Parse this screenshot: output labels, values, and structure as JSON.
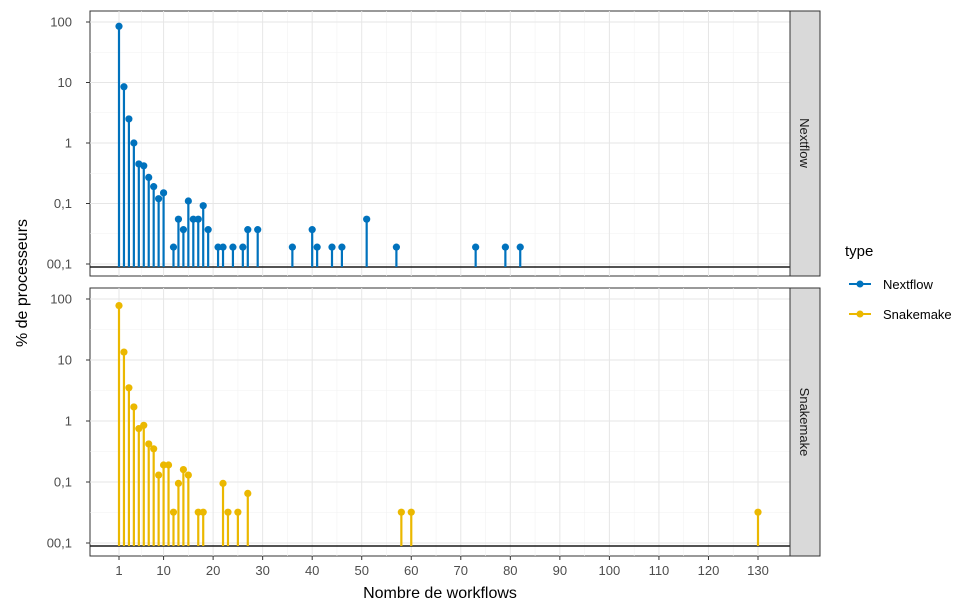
{
  "chart_data": {
    "type": "lollipop",
    "xlabel": "Nombre de workflows",
    "ylabel": "% de processeurs",
    "y_scale": "log10",
    "x_ticks": [
      "1",
      "10",
      "20",
      "30",
      "40",
      "50",
      "60",
      "70",
      "80",
      "90",
      "100",
      "110",
      "120",
      "130"
    ],
    "x_tick_values": [
      1,
      10,
      20,
      30,
      40,
      50,
      60,
      70,
      80,
      90,
      100,
      110,
      120,
      130
    ],
    "y_ticks": [
      "00,1",
      "0,1",
      "1",
      "10",
      "100"
    ],
    "y_tick_values": [
      0.01,
      0.1,
      1,
      10,
      100
    ],
    "grid": true,
    "legend": {
      "title": "type",
      "position": "right",
      "entries": [
        "Nextflow",
        "Snakemake"
      ]
    },
    "colors": {
      "Nextflow": "#0072BD",
      "Snakemake": "#EBB800"
    },
    "series": [
      {
        "name": "Nextflow",
        "points": [
          [
            1,
            85
          ],
          [
            2,
            8.5
          ],
          [
            3,
            2.5
          ],
          [
            4,
            1.0
          ],
          [
            5,
            0.45
          ],
          [
            6,
            0.42
          ],
          [
            7,
            0.27
          ],
          [
            8,
            0.19
          ],
          [
            9,
            0.12
          ],
          [
            10,
            0.15
          ],
          [
            12,
            0.019
          ],
          [
            13,
            0.055
          ],
          [
            14,
            0.037
          ],
          [
            15,
            0.11
          ],
          [
            16,
            0.055
          ],
          [
            17,
            0.055
          ],
          [
            18,
            0.092
          ],
          [
            19,
            0.037
          ],
          [
            21,
            0.019
          ],
          [
            22,
            0.019
          ],
          [
            24,
            0.019
          ],
          [
            26,
            0.019
          ],
          [
            27,
            0.037
          ],
          [
            29,
            0.037
          ],
          [
            36,
            0.019
          ],
          [
            40,
            0.037
          ],
          [
            41,
            0.019
          ],
          [
            44,
            0.019
          ],
          [
            46,
            0.019
          ],
          [
            51,
            0.055
          ],
          [
            57,
            0.019
          ],
          [
            73,
            0.019
          ],
          [
            79,
            0.019
          ],
          [
            82,
            0.019
          ]
        ]
      },
      {
        "name": "Snakemake",
        "points": [
          [
            1,
            78
          ],
          [
            2,
            13.5
          ],
          [
            3,
            3.5
          ],
          [
            4,
            1.7
          ],
          [
            5,
            0.75
          ],
          [
            6,
            0.85
          ],
          [
            7,
            0.42
          ],
          [
            8,
            0.35
          ],
          [
            9,
            0.13
          ],
          [
            10,
            0.19
          ],
          [
            11,
            0.19
          ],
          [
            12,
            0.032
          ],
          [
            13,
            0.095
          ],
          [
            14,
            0.16
          ],
          [
            15,
            0.13
          ],
          [
            17,
            0.032
          ],
          [
            18,
            0.032
          ],
          [
            22,
            0.095
          ],
          [
            23,
            0.032
          ],
          [
            25,
            0.032
          ],
          [
            27,
            0.065
          ],
          [
            58,
            0.032
          ],
          [
            60,
            0.032
          ],
          [
            130,
            0.032
          ]
        ]
      }
    ]
  }
}
